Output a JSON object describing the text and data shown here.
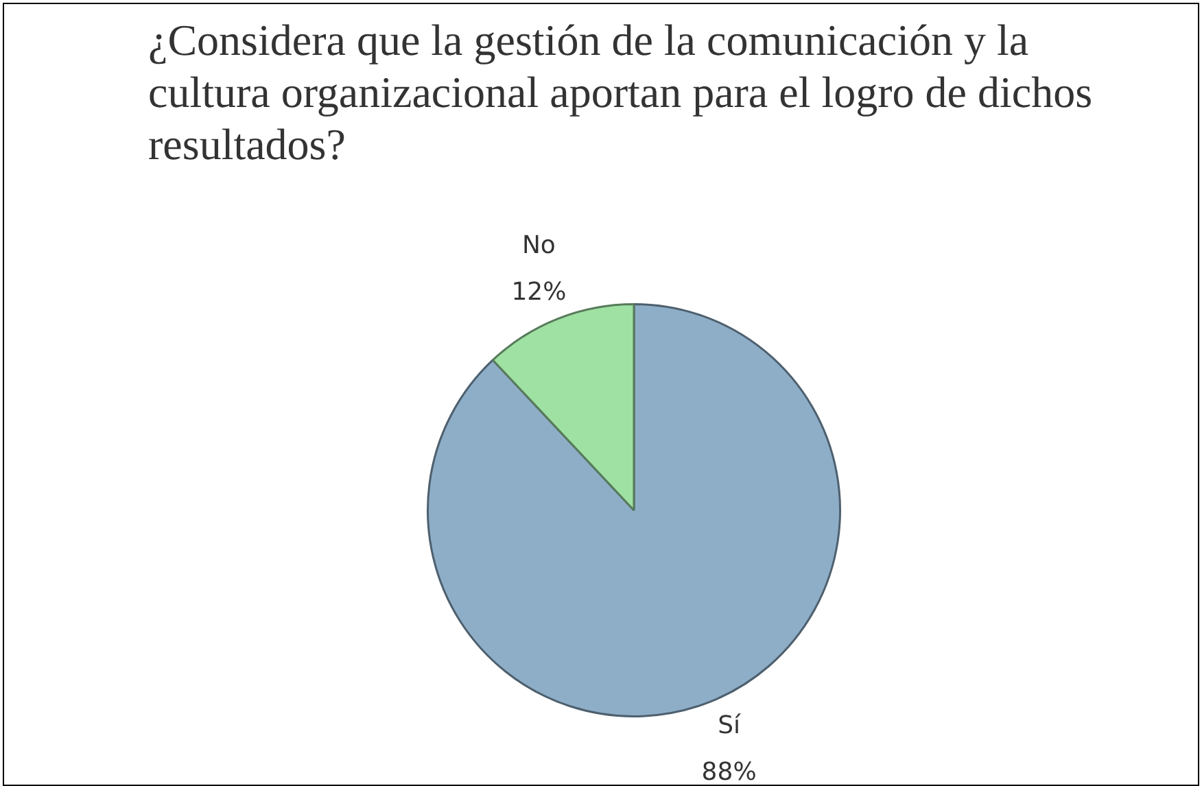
{
  "chart_data": {
    "type": "pie",
    "title": "¿Considera que la gestión de la comunicación y la cultura organizacional aportan para el logro de dichos  resultados?",
    "categories": [
      "Sí",
      "No"
    ],
    "values": [
      88,
      12
    ],
    "value_labels": [
      "88%",
      "12%"
    ],
    "colors": [
      "#8eaec8",
      "#9fe0a3"
    ]
  }
}
